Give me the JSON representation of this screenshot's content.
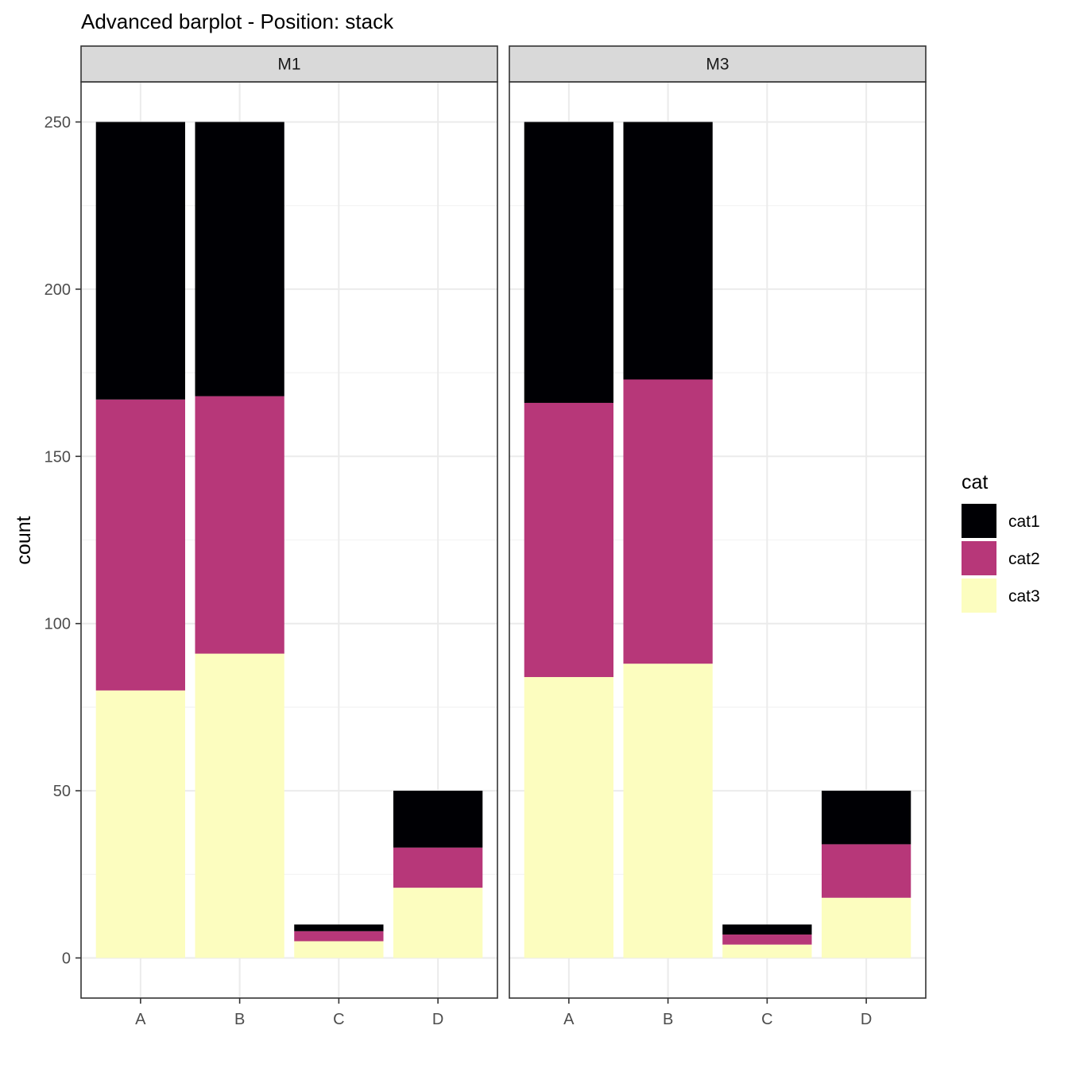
{
  "chart_data": {
    "type": "bar",
    "position": "stack",
    "title": "Advanced barplot - Position: stack",
    "ylabel": "count",
    "xlabel": "",
    "categories": [
      "A",
      "B",
      "C",
      "D"
    ],
    "ylim": [
      -12,
      262
    ],
    "yticks": [
      0,
      50,
      100,
      150,
      200,
      250
    ],
    "grid": true,
    "legend": {
      "title": "cat",
      "placement": "right",
      "entries": [
        {
          "name": "cat1",
          "color": "#000004"
        },
        {
          "name": "cat2",
          "color": "#b73779"
        },
        {
          "name": "cat3",
          "color": "#fcfdbf"
        }
      ]
    },
    "facets": [
      {
        "label": "M1",
        "series": [
          {
            "name": "cat3",
            "values": [
              80,
              91,
              5,
              21
            ]
          },
          {
            "name": "cat2",
            "values": [
              87,
              77,
              3,
              12
            ]
          },
          {
            "name": "cat1",
            "values": [
              83,
              82,
              2,
              17
            ]
          }
        ]
      },
      {
        "label": "M3",
        "series": [
          {
            "name": "cat3",
            "values": [
              84,
              88,
              4,
              18
            ]
          },
          {
            "name": "cat2",
            "values": [
              82,
              85,
              3,
              16
            ]
          },
          {
            "name": "cat1",
            "values": [
              84,
              77,
              3,
              16
            ]
          }
        ]
      }
    ]
  }
}
